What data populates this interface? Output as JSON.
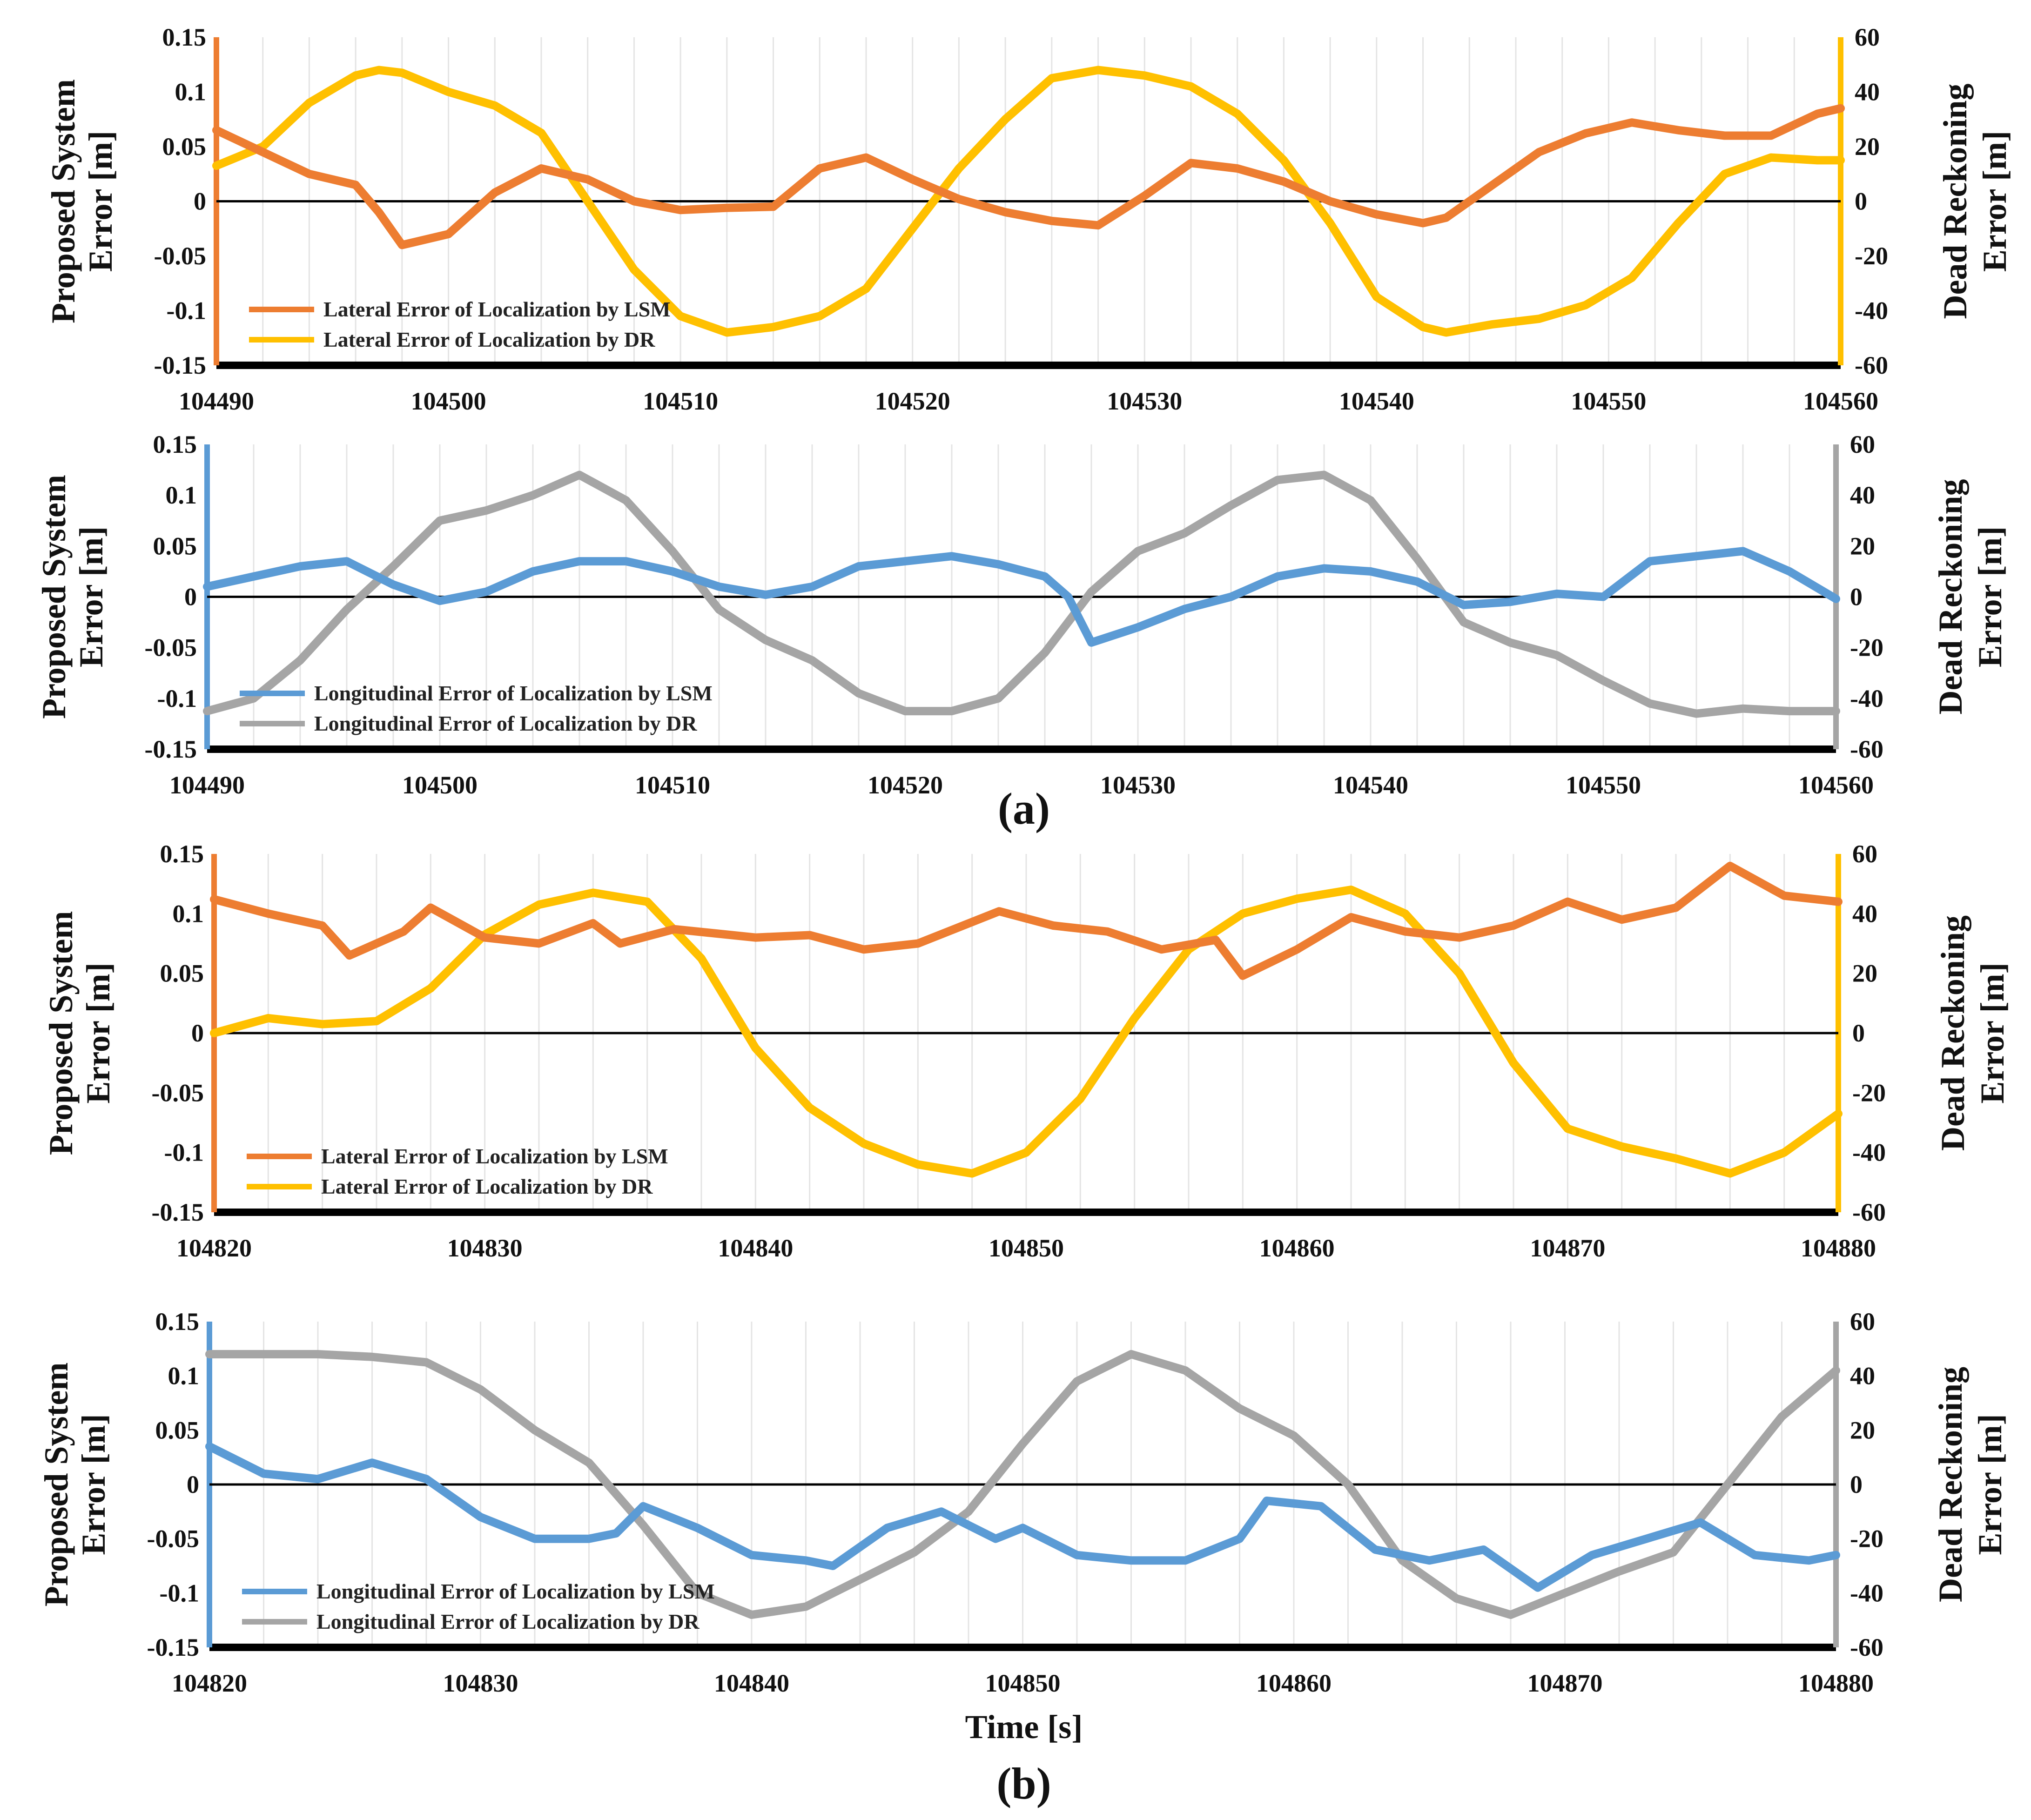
{
  "figure": {
    "caption_a": "(a)",
    "caption_b": "(b)",
    "xlabel": "Time [s]"
  },
  "chart_data": [
    {
      "type": "line",
      "panel": "a-lateral",
      "left_axis": {
        "title_line1": "Proposed System",
        "title_line2": "Error [m]",
        "ylim": [
          -0.15,
          0.15
        ],
        "ticks": [
          -0.15,
          -0.1,
          -0.05,
          0,
          0.05,
          0.1,
          0.15
        ],
        "tick_labels": [
          "-0.15",
          "-0.1",
          "-0.05",
          "0",
          "0.05",
          "0.1",
          "0.15"
        ]
      },
      "right_axis": {
        "title_line1": "Dead Reckoning",
        "title_line2": "Error [m]",
        "ylim": [
          -60,
          60
        ],
        "ticks": [
          -60,
          -40,
          -20,
          0,
          20,
          40,
          60
        ],
        "tick_labels": [
          "-60",
          "-40",
          "-20",
          "0",
          "20",
          "40",
          "60"
        ]
      },
      "xlim": [
        104490,
        104560
      ],
      "x_ticks": [
        104490,
        104500,
        104510,
        104520,
        104530,
        104540,
        104550,
        104560
      ],
      "x_tick_labels": [
        "104490",
        "104500",
        "104510",
        "104520",
        "104530",
        "104540",
        "104550",
        "104560"
      ],
      "legend_position": "bottom-left",
      "series": [
        {
          "name": "Lateral Error of Localization by LSM",
          "axis": "left",
          "color": "#ED7D31",
          "x": [
            104490,
            104492,
            104494,
            104496,
            104497,
            104498,
            104500,
            104502,
            104504,
            104506,
            104508,
            104510,
            104512,
            104514,
            104516,
            104518,
            104520,
            104522,
            104524,
            104526,
            104528,
            104530,
            104532,
            104534,
            104536,
            104538,
            104540,
            104542,
            104543,
            104545,
            104547,
            104549,
            104551,
            104553,
            104555,
            104557,
            104559,
            104560
          ],
          "y": [
            0.065,
            0.045,
            0.025,
            0.015,
            -0.01,
            -0.04,
            -0.03,
            0.008,
            0.03,
            0.02,
            0.0,
            -0.008,
            -0.006,
            -0.005,
            0.03,
            0.04,
            0.02,
            0.002,
            -0.01,
            -0.018,
            -0.022,
            0.005,
            0.035,
            0.03,
            0.018,
            0.0,
            -0.012,
            -0.02,
            -0.015,
            0.015,
            0.045,
            0.062,
            0.072,
            0.065,
            0.06,
            0.06,
            0.08,
            0.085
          ]
        },
        {
          "name": "Lateral Error of Localization by DR",
          "axis": "right",
          "color": "#FFC000",
          "x": [
            104490,
            104492,
            104494,
            104496,
            104497,
            104498,
            104500,
            104502,
            104504,
            104506,
            104508,
            104510,
            104512,
            104514,
            104516,
            104518,
            104520,
            104522,
            104524,
            104526,
            104528,
            104530,
            104532,
            104534,
            104536,
            104538,
            104540,
            104542,
            104543,
            104545,
            104547,
            104549,
            104551,
            104553,
            104555,
            104557,
            104559,
            104560
          ],
          "y": [
            13,
            20,
            36,
            46,
            48,
            47,
            40,
            35,
            25,
            0,
            -25,
            -42,
            -48,
            -46,
            -42,
            -32,
            -10,
            12,
            30,
            45,
            48,
            46,
            42,
            32,
            15,
            -8,
            -35,
            -46,
            -48,
            -45,
            -43,
            -38,
            -28,
            -8,
            10,
            16,
            15,
            15
          ]
        }
      ]
    },
    {
      "type": "line",
      "panel": "a-longitudinal",
      "left_axis": {
        "title_line1": "Proposed System",
        "title_line2": "Error [m]",
        "ylim": [
          -0.15,
          0.15
        ],
        "ticks": [
          -0.15,
          -0.1,
          -0.05,
          0,
          0.05,
          0.1,
          0.15
        ],
        "tick_labels": [
          "-0.15",
          "-0.1",
          "-0.05",
          "0",
          "0.05",
          "0.1",
          "0.15"
        ]
      },
      "right_axis": {
        "title_line1": "Dead Reckoning",
        "title_line2": "Error [m]",
        "ylim": [
          -60,
          60
        ],
        "ticks": [
          -60,
          -40,
          -20,
          0,
          20,
          40,
          60
        ],
        "tick_labels": [
          "-60",
          "-40",
          "-20",
          "0",
          "20",
          "40",
          "60"
        ]
      },
      "xlim": [
        104490,
        104560
      ],
      "x_ticks": [
        104490,
        104500,
        104510,
        104520,
        104530,
        104540,
        104550,
        104560
      ],
      "x_tick_labels": [
        "104490",
        "104500",
        "104510",
        "104520",
        "104530",
        "104540",
        "104550",
        "104560"
      ],
      "legend_position": "bottom-left",
      "series": [
        {
          "name": "Longitudinal Error of Localization by LSM",
          "axis": "left",
          "color": "#5B9BD5",
          "x": [
            104490,
            104492,
            104494,
            104496,
            104498,
            104500,
            104502,
            104504,
            104506,
            104508,
            104510,
            104512,
            104514,
            104516,
            104518,
            104520,
            104522,
            104524,
            104526,
            104527,
            104528,
            104530,
            104532,
            104534,
            104536,
            104538,
            104540,
            104542,
            104544,
            104546,
            104548,
            104550,
            104552,
            104554,
            104556,
            104558,
            104560
          ],
          "y": [
            0.01,
            0.02,
            0.03,
            0.035,
            0.012,
            -0.004,
            0.005,
            0.025,
            0.035,
            0.035,
            0.025,
            0.01,
            0.002,
            0.01,
            0.03,
            0.035,
            0.04,
            0.032,
            0.02,
            0.0,
            -0.045,
            -0.03,
            -0.012,
            0.0,
            0.02,
            0.028,
            0.025,
            0.015,
            -0.008,
            -0.005,
            0.003,
            0.0,
            0.035,
            0.04,
            0.045,
            0.025,
            -0.002
          ]
        },
        {
          "name": "Longitudinal Error of Localization by DR",
          "axis": "right",
          "color": "#A5A5A5",
          "x": [
            104490,
            104492,
            104494,
            104496,
            104498,
            104500,
            104502,
            104504,
            104506,
            104508,
            104510,
            104512,
            104514,
            104516,
            104518,
            104520,
            104522,
            104524,
            104526,
            104527,
            104528,
            104530,
            104532,
            104534,
            104536,
            104538,
            104540,
            104542,
            104544,
            104546,
            104548,
            104550,
            104552,
            104554,
            104556,
            104558,
            104560
          ],
          "y": [
            -45,
            -40,
            -25,
            -5,
            12,
            30,
            34,
            40,
            48,
            38,
            18,
            -5,
            -17,
            -25,
            -38,
            -45,
            -45,
            -40,
            -22,
            -10,
            2,
            18,
            25,
            36,
            46,
            48,
            38,
            15,
            -10,
            -18,
            -23,
            -33,
            -42,
            -46,
            -44,
            -45,
            -45
          ]
        }
      ]
    },
    {
      "type": "line",
      "panel": "b-lateral",
      "left_axis": {
        "title_line1": "Proposed System",
        "title_line2": "Error [m]",
        "ylim": [
          -0.15,
          0.15
        ],
        "ticks": [
          -0.15,
          -0.1,
          -0.05,
          0,
          0.05,
          0.1,
          0.15
        ],
        "tick_labels": [
          "-0.15",
          "-0.1",
          "-0.05",
          "0",
          "0.05",
          "0.1",
          "0.15"
        ]
      },
      "right_axis": {
        "title_line1": "Dead Reckoning",
        "title_line2": "Error [m]",
        "ylim": [
          -60,
          60
        ],
        "ticks": [
          -60,
          -40,
          -20,
          0,
          20,
          40,
          60
        ],
        "tick_labels": [
          "-60",
          "-40",
          "-20",
          "0",
          "20",
          "40",
          "60"
        ]
      },
      "xlim": [
        104820,
        104880
      ],
      "x_ticks": [
        104820,
        104830,
        104840,
        104850,
        104860,
        104870,
        104880
      ],
      "x_tick_labels": [
        "104820",
        "104830",
        "104840",
        "104850",
        "104860",
        "104870",
        "104880"
      ],
      "legend_position": "bottom-left",
      "series": [
        {
          "name": "Lateral Error of Localization by LSM",
          "axis": "left",
          "color": "#ED7D31",
          "x": [
            104820,
            104822,
            104824,
            104825,
            104827,
            104828,
            104830,
            104832,
            104834,
            104835,
            104837,
            104840,
            104842,
            104844,
            104846,
            104849,
            104851,
            104853,
            104855,
            104857,
            104858,
            104860,
            104862,
            104864,
            104866,
            104868,
            104870,
            104872,
            104874,
            104876,
            104878,
            104880
          ],
          "y": [
            0.112,
            0.1,
            0.09,
            0.065,
            0.085,
            0.105,
            0.08,
            0.075,
            0.092,
            0.075,
            0.087,
            0.08,
            0.082,
            0.07,
            0.075,
            0.102,
            0.09,
            0.085,
            0.07,
            0.078,
            0.048,
            0.07,
            0.097,
            0.085,
            0.08,
            0.09,
            0.11,
            0.095,
            0.105,
            0.14,
            0.115,
            0.11
          ]
        },
        {
          "name": "Lateral Error of Localization by DR",
          "axis": "right",
          "color": "#FFC000",
          "x": [
            104820,
            104822,
            104824,
            104826,
            104828,
            104830,
            104832,
            104834,
            104836,
            104838,
            104840,
            104842,
            104844,
            104846,
            104848,
            104850,
            104852,
            104854,
            104856,
            104858,
            104860,
            104862,
            104864,
            104866,
            104868,
            104870,
            104872,
            104874,
            104876,
            104878,
            104880
          ],
          "y": [
            0,
            5,
            3,
            4,
            15,
            33,
            43,
            47,
            44,
            25,
            -5,
            -25,
            -37,
            -44,
            -47,
            -40,
            -22,
            5,
            28,
            40,
            45,
            48,
            40,
            20,
            -10,
            -32,
            -38,
            -42,
            -47,
            -40,
            -27
          ]
        }
      ]
    },
    {
      "type": "line",
      "panel": "b-longitudinal",
      "left_axis": {
        "title_line1": "Proposed System",
        "title_line2": "Error [m]",
        "ylim": [
          -0.15,
          0.15
        ],
        "ticks": [
          -0.15,
          -0.1,
          -0.05,
          0,
          0.05,
          0.1,
          0.15
        ],
        "tick_labels": [
          "-0.15",
          "-0.1",
          "-0.05",
          "0",
          "0.05",
          "0.1",
          "0.15"
        ]
      },
      "right_axis": {
        "title_line1": "Dead Reckoning",
        "title_line2": "Error [m]",
        "ylim": [
          -60,
          60
        ],
        "ticks": [
          -60,
          -40,
          -20,
          0,
          20,
          40,
          60
        ],
        "tick_labels": [
          "-60",
          "-40",
          "-20",
          "0",
          "20",
          "40",
          "60"
        ]
      },
      "xlim": [
        104820,
        104880
      ],
      "x_ticks": [
        104820,
        104830,
        104840,
        104850,
        104860,
        104870,
        104880
      ],
      "x_tick_labels": [
        "104820",
        "104830",
        "104840",
        "104850",
        "104860",
        "104870",
        "104880"
      ],
      "legend_position": "bottom-left",
      "series": [
        {
          "name": "Longitudinal Error of Localization by LSM",
          "axis": "left",
          "color": "#5B9BD5",
          "x": [
            104820,
            104822,
            104824,
            104826,
            104828,
            104830,
            104832,
            104834,
            104835,
            104836,
            104838,
            104840,
            104842,
            104843,
            104845,
            104847,
            104849,
            104850,
            104852,
            104854,
            104856,
            104858,
            104859,
            104861,
            104863,
            104865,
            104867,
            104869,
            104871,
            104873,
            104875,
            104877,
            104879,
            104880
          ],
          "y": [
            0.035,
            0.01,
            0.005,
            0.02,
            0.005,
            -0.03,
            -0.05,
            -0.05,
            -0.045,
            -0.02,
            -0.04,
            -0.065,
            -0.07,
            -0.075,
            -0.04,
            -0.025,
            -0.05,
            -0.04,
            -0.065,
            -0.07,
            -0.07,
            -0.05,
            -0.015,
            -0.02,
            -0.06,
            -0.07,
            -0.06,
            -0.095,
            -0.065,
            -0.05,
            -0.035,
            -0.065,
            -0.07,
            -0.065
          ]
        },
        {
          "name": "Longitudinal Error of Localization by DR",
          "axis": "right",
          "color": "#A5A5A5",
          "x": [
            104820,
            104822,
            104824,
            104826,
            104828,
            104830,
            104832,
            104834,
            104836,
            104838,
            104840,
            104842,
            104844,
            104846,
            104848,
            104850,
            104852,
            104854,
            104856,
            104858,
            104860,
            104862,
            104864,
            104866,
            104868,
            104870,
            104872,
            104874,
            104876,
            104878,
            104880
          ],
          "y": [
            48,
            48,
            48,
            47,
            45,
            35,
            20,
            8,
            -15,
            -40,
            -48,
            -45,
            -35,
            -25,
            -10,
            15,
            38,
            48,
            42,
            28,
            18,
            0,
            -28,
            -42,
            -48,
            -40,
            -32,
            -25,
            0,
            25,
            42
          ]
        }
      ]
    }
  ]
}
